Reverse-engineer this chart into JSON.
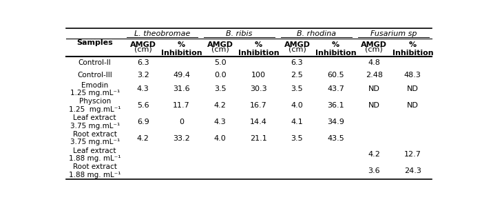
{
  "col_groups": [
    {
      "name": "L. theobromae"
    },
    {
      "name": "B. ribis"
    },
    {
      "name": "B. rhodina"
    },
    {
      "name": "Fusarium sp"
    }
  ],
  "row_labels": [
    "Control-II",
    "Control-III",
    "Emodin\n1.25 mg.mL⁻¹",
    "Physcion\n1.25  mg.mL⁻¹",
    "Leaf extract\n3.75 mg.mL⁻¹",
    "Root extract\n3.75 mg.mL⁻¹",
    "Leaf extract\n1.88 mg. mL⁻¹",
    "Root extract\n1.88 mg. mL⁻¹"
  ],
  "cell_data": [
    [
      "6.3",
      "",
      "5.0",
      "",
      "6.3",
      "",
      "4.8",
      ""
    ],
    [
      "3.2",
      "49.4",
      "0.0",
      "100",
      "2.5",
      "60.5",
      "2.48",
      "48.3"
    ],
    [
      "4.3",
      "31.6",
      "3.5",
      "30.3",
      "3.5",
      "43.7",
      "ND",
      "ND"
    ],
    [
      "5.6",
      "11.7",
      "4.2",
      "16.7",
      "4.0",
      "36.1",
      "ND",
      "ND"
    ],
    [
      "6.9",
      "0",
      "4.3",
      "14.4",
      "4.1",
      "34.9",
      "",
      ""
    ],
    [
      "4.2",
      "33.2",
      "4.0",
      "21.1",
      "3.5",
      "43.5",
      "",
      ""
    ],
    [
      "",
      "",
      "",
      "",
      "",
      "",
      "4.2",
      "12.7"
    ],
    [
      "",
      "",
      "",
      "",
      "",
      "",
      "3.6",
      "24.3"
    ]
  ],
  "bg_color": "#ffffff",
  "font_size": 8.0,
  "header_font_size": 8.0
}
